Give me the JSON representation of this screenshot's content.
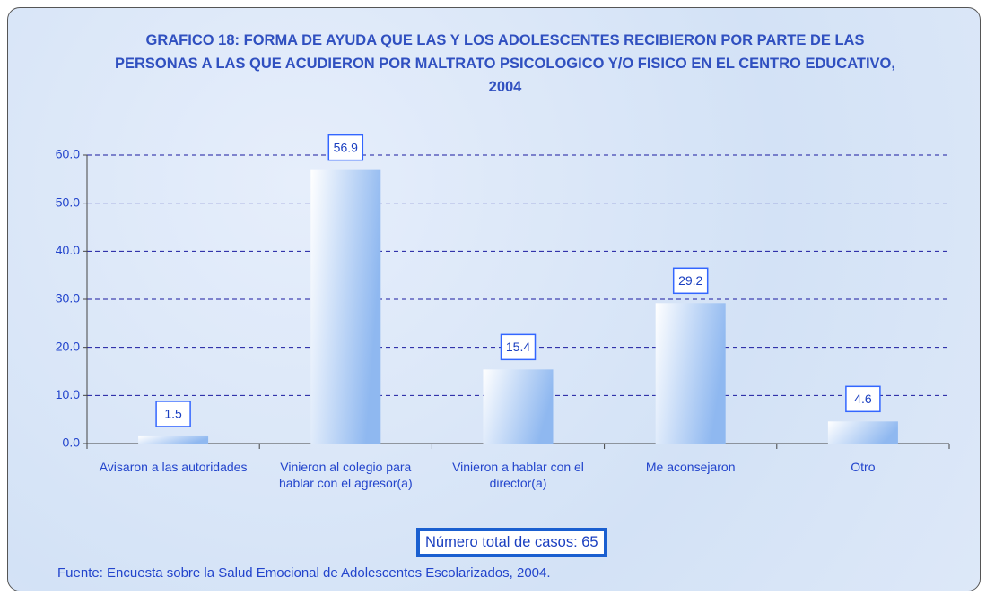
{
  "chart_data": {
    "type": "bar",
    "title": "GRAFICO 18: FORMA DE AYUDA QUE LAS Y LOS ADOLESCENTES RECIBIERON POR PARTE DE LAS PERSONAS A LAS QUE ACUDIERON POR MALTRATO PSICOLOGICO Y/O FISICO EN EL CENTRO EDUCATIVO, 2004",
    "categories": [
      "Avisaron a las autoridades",
      "Vinieron al colegio para hablar con el agresor(a)",
      "Vinieron a hablar con el director(a)",
      "Me aconsejaron",
      "Otro"
    ],
    "values": [
      1.5,
      56.9,
      15.4,
      29.2,
      4.6
    ],
    "color": "#8fb8f0",
    "ylim": [
      0,
      60
    ],
    "yticks": [
      {
        "value": 0,
        "label": "0.0"
      },
      {
        "value": 10,
        "label": "10.0"
      },
      {
        "value": 20,
        "label": "20.0"
      },
      {
        "value": 30,
        "label": "30.0"
      },
      {
        "value": 40,
        "label": "40.0"
      },
      {
        "value": 50,
        "label": "50.0"
      },
      {
        "value": 60,
        "label": "60.0"
      }
    ],
    "grid": true,
    "annotation": "Número total de casos: 65",
    "source": "Fuente: Encuesta sobre la Salud Emocional de Adolescentes Escolarizados, 2004."
  }
}
